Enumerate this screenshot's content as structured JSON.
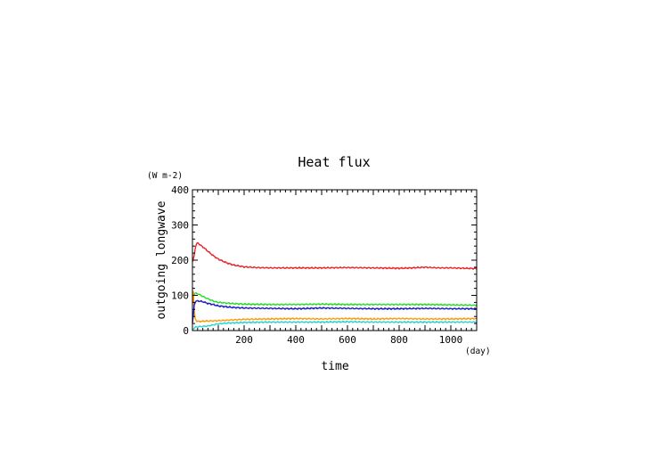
{
  "chart_data": {
    "type": "line",
    "title": "Heat flux",
    "xlabel": "time",
    "ylabel": "outgoing longwave",
    "x_unit": "(day)",
    "y_unit": "(W m-2)",
    "xlim": [
      0,
      1100
    ],
    "ylim": [
      0,
      400
    ],
    "x_ticks": [
      200,
      400,
      600,
      800,
      1000
    ],
    "y_ticks": [
      0,
      100,
      200,
      300,
      400
    ],
    "legend": "none",
    "grid": false,
    "series": [
      {
        "color": "#e8252a",
        "x": [
          0,
          5,
          12,
          20,
          30,
          45,
          60,
          80,
          100,
          130,
          160,
          200,
          250,
          300,
          400,
          500,
          600,
          700,
          800,
          850,
          900,
          950,
          1000,
          1050,
          1100
        ],
        "y": [
          195,
          205,
          240,
          250,
          243,
          235,
          225,
          213,
          203,
          193,
          186,
          181,
          179,
          178,
          178,
          178,
          179,
          178,
          177,
          178,
          180,
          178,
          178,
          177,
          176
        ]
      },
      {
        "color": "#22dd22",
        "x": [
          0,
          5,
          10,
          20,
          40,
          60,
          80,
          100,
          150,
          200,
          300,
          400,
          500,
          600,
          700,
          800,
          900,
          1000,
          1100
        ],
        "y": [
          95,
          102,
          106,
          105,
          97,
          90,
          84,
          80,
          77,
          75,
          74,
          74,
          75,
          74,
          74,
          74,
          74,
          73,
          72
        ]
      },
      {
        "color": "#ff9a00",
        "x": [
          0,
          3,
          6,
          10,
          15,
          20,
          30,
          50,
          100,
          150,
          200,
          300,
          400,
          500,
          600,
          700,
          800,
          900,
          1000,
          1100
        ],
        "y": [
          80,
          120,
          60,
          35,
          28,
          26,
          26,
          27,
          28,
          30,
          32,
          33,
          34,
          33,
          34,
          33,
          34,
          33,
          33,
          34
        ]
      },
      {
        "color": "#1a1acc",
        "x": [
          0,
          3,
          6,
          10,
          15,
          25,
          40,
          60,
          80,
          100,
          150,
          200,
          300,
          400,
          500,
          600,
          700,
          800,
          900,
          1000,
          1100
        ],
        "y": [
          20,
          40,
          70,
          80,
          84,
          84,
          82,
          77,
          74,
          70,
          66,
          64,
          63,
          62,
          64,
          63,
          62,
          62,
          63,
          62,
          62
        ]
      },
      {
        "color": "#22d4d4",
        "x": [
          0,
          5,
          10,
          20,
          40,
          60,
          80,
          100,
          130,
          160,
          200,
          300,
          400,
          500,
          600,
          700,
          800,
          900,
          1000,
          1100
        ],
        "y": [
          3,
          6,
          9,
          11,
          12,
          13,
          16,
          19,
          21,
          22,
          23,
          24,
          24,
          24,
          25,
          24,
          24,
          24,
          24,
          24
        ]
      }
    ]
  }
}
